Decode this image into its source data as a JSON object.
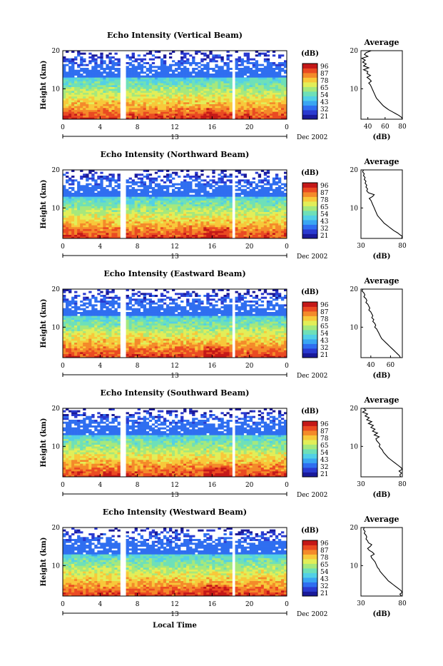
{
  "page": {
    "x_axis_label": "Local Time"
  },
  "colors": {
    "colorbar": [
      "#1a1a9a",
      "#2a3ad0",
      "#2f6ef0",
      "#3aa6f2",
      "#52d0e6",
      "#6ee0b8",
      "#a6e87c",
      "#e2ee58",
      "#f8c83a",
      "#f48a2a",
      "#ea4a22",
      "#c41818"
    ],
    "panel_bg": "#ffffff",
    "gap": "#ffffff",
    "profile_line": "#000000"
  },
  "chart_data": [
    {
      "type": "heatmap",
      "title": "Echo Intensity (Vertical Beam)",
      "ylabel": "Height (km)",
      "x_ticks": [
        "0",
        "4",
        "8",
        "12",
        "16",
        "20",
        "0"
      ],
      "xlim": [
        0,
        24
      ],
      "ylim": [
        2,
        20
      ],
      "y_ticks": [
        "10",
        "20"
      ],
      "day_label": "13",
      "date_label": "Dec 2002",
      "data_gaps_hours": [
        [
          6.3,
          6.8
        ],
        [
          18.1,
          18.4
        ]
      ],
      "colorbar": {
        "unit": "(dB)",
        "levels": [
          "96",
          "87",
          "78",
          "65",
          "54",
          "43",
          "32",
          "21"
        ]
      },
      "average_profile": {
        "title": "Average",
        "xlabel": "(dB)",
        "x_ticks": [
          "40",
          "60",
          "80"
        ],
        "y_ticks": [
          "10",
          "20"
        ],
        "xlim": [
          32,
          80
        ],
        "ylim": [
          2,
          20
        ],
        "height_km": [
          20,
          19.5,
          19,
          18.5,
          18,
          17.5,
          17,
          16.5,
          16,
          15.5,
          15,
          14.5,
          14,
          13.5,
          13,
          12.5,
          12,
          11.5,
          11,
          10.5,
          10,
          9.5,
          9,
          8.5,
          8,
          7.5,
          7,
          6.5,
          6,
          5.5,
          5,
          4.5,
          4,
          3.5,
          3,
          2.5,
          2
        ],
        "power_db": [
          44,
          38,
          36,
          40,
          33,
          37,
          34,
          38,
          35,
          41,
          35,
          40,
          39,
          43,
          39,
          42,
          44,
          41,
          43,
          44,
          45,
          46,
          47,
          48,
          49,
          50,
          52,
          54,
          56,
          58,
          61,
          64,
          68,
          72,
          76,
          79,
          80
        ]
      }
    },
    {
      "type": "heatmap",
      "title": "Echo Intensity (Northward Beam)",
      "ylabel": "Height (km)",
      "x_ticks": [
        "0",
        "4",
        "8",
        "12",
        "16",
        "20",
        "0"
      ],
      "xlim": [
        0,
        24
      ],
      "ylim": [
        2,
        20
      ],
      "y_ticks": [
        "10",
        "20"
      ],
      "day_label": "13",
      "date_label": "Dec 2002",
      "data_gaps_hours": [
        [
          6.3,
          6.8
        ],
        [
          18.1,
          18.4
        ]
      ],
      "colorbar": {
        "unit": "(dB)",
        "levels": [
          "96",
          "87",
          "78",
          "65",
          "54",
          "43",
          "32",
          "21"
        ]
      },
      "average_profile": {
        "title": "Average",
        "xlabel": "(dB)",
        "x_ticks": [
          "30",
          "80"
        ],
        "y_ticks": [
          "10",
          "20"
        ],
        "xlim": [
          30,
          80
        ],
        "ylim": [
          2,
          20
        ],
        "height_km": [
          20,
          19.5,
          19,
          18.5,
          18,
          17.5,
          17,
          16.5,
          16,
          15.5,
          15,
          14.5,
          14,
          13.5,
          13,
          12.5,
          12,
          11.5,
          11,
          10.5,
          10,
          9.5,
          9,
          8.5,
          8,
          7.5,
          7,
          6.5,
          6,
          5.5,
          5,
          4.5,
          4,
          3.5,
          3,
          2.5,
          2
        ],
        "power_db": [
          33,
          32,
          34,
          33,
          35,
          34,
          36,
          35,
          37,
          36,
          38,
          37,
          39,
          46,
          44,
          40,
          42,
          43,
          44,
          45,
          46,
          47,
          48,
          49,
          50,
          52,
          54,
          56,
          58,
          61,
          64,
          67,
          70,
          74,
          77,
          80,
          79
        ]
      }
    },
    {
      "type": "heatmap",
      "title": "Echo Intensity (Eastward Beam)",
      "ylabel": "Height (km)",
      "x_ticks": [
        "0",
        "4",
        "8",
        "12",
        "16",
        "20",
        "0"
      ],
      "xlim": [
        0,
        24
      ],
      "ylim": [
        2,
        20
      ],
      "y_ticks": [
        "10",
        "20"
      ],
      "day_label": "13",
      "date_label": "Dec 2002",
      "data_gaps_hours": [
        [
          6.3,
          6.8
        ],
        [
          18.1,
          18.4
        ]
      ],
      "colorbar": {
        "unit": "(dB)",
        "levels": [
          "96",
          "87",
          "78",
          "65",
          "54",
          "43",
          "32",
          "21"
        ]
      },
      "average_profile": {
        "title": "Average",
        "xlabel": "(dB)",
        "x_ticks": [
          "40",
          "60"
        ],
        "y_ticks": [
          "10",
          "20"
        ],
        "xlim": [
          30,
          72
        ],
        "ylim": [
          2,
          20
        ],
        "height_km": [
          20,
          19.5,
          19,
          18.5,
          18,
          17.5,
          17,
          16.5,
          16,
          15.5,
          15,
          14.5,
          14,
          13.5,
          13,
          12.5,
          12,
          11.5,
          11,
          10.5,
          10,
          9.5,
          9,
          8.5,
          8,
          7.5,
          7,
          6.5,
          6,
          5.5,
          5,
          4.5,
          4,
          3.5,
          3,
          2.5,
          2
        ],
        "power_db": [
          32,
          31,
          33,
          34,
          33,
          35,
          36,
          35,
          37,
          38,
          39,
          38,
          40,
          41,
          42,
          41,
          43,
          42,
          44,
          45,
          44,
          46,
          47,
          48,
          49,
          50,
          51,
          53,
          55,
          57,
          59,
          61,
          63,
          65,
          67,
          69,
          70
        ]
      }
    },
    {
      "type": "heatmap",
      "title": "Echo Intensity (Southward Beam)",
      "ylabel": "Height (km)",
      "x_ticks": [
        "0",
        "4",
        "8",
        "12",
        "16",
        "20",
        "0"
      ],
      "xlim": [
        0,
        24
      ],
      "ylim": [
        2,
        20
      ],
      "y_ticks": [
        "10",
        "20"
      ],
      "day_label": "13",
      "date_label": "Dec 2002",
      "data_gaps_hours": [
        [
          6.3,
          6.8
        ],
        [
          18.1,
          18.4
        ]
      ],
      "colorbar": {
        "unit": "(dB)",
        "levels": [
          "96",
          "87",
          "78",
          "65",
          "54",
          "43",
          "32",
          "21"
        ]
      },
      "average_profile": {
        "title": "Average",
        "xlabel": "(dB)",
        "x_ticks": [
          "30",
          "80"
        ],
        "y_ticks": [
          "10",
          "20"
        ],
        "xlim": [
          30,
          80
        ],
        "ylim": [
          2,
          20
        ],
        "height_km": [
          20,
          19.5,
          19,
          18.5,
          18,
          17.5,
          17,
          16.5,
          16,
          15.5,
          15,
          14.5,
          14,
          13.5,
          13,
          12.5,
          12,
          11.5,
          11,
          10.5,
          10,
          9.5,
          9,
          8.5,
          8,
          7.5,
          7,
          6.5,
          6,
          5.5,
          5,
          4.5,
          4,
          3.5,
          3,
          2.5,
          2
        ],
        "power_db": [
          33,
          36,
          32,
          38,
          35,
          40,
          37,
          43,
          39,
          45,
          42,
          47,
          44,
          50,
          46,
          52,
          48,
          49,
          51,
          53,
          52,
          54,
          56,
          57,
          59,
          61,
          63,
          66,
          69,
          72,
          75,
          78,
          80,
          76,
          79,
          77,
          78
        ]
      }
    },
    {
      "type": "heatmap",
      "title": "Echo Intensity (Westward Beam)",
      "ylabel": "Height (km)",
      "x_ticks": [
        "0",
        "4",
        "8",
        "12",
        "16",
        "20",
        "0"
      ],
      "xlim": [
        0,
        24
      ],
      "ylim": [
        2,
        20
      ],
      "y_ticks": [
        "10",
        "20"
      ],
      "day_label": "13",
      "date_label": "Dec 2002",
      "data_gaps_hours": [
        [
          6.3,
          6.8
        ],
        [
          18.1,
          18.4
        ]
      ],
      "colorbar": {
        "unit": "(dB)",
        "levels": [
          "96",
          "87",
          "78",
          "65",
          "54",
          "43",
          "32",
          "21"
        ]
      },
      "average_profile": {
        "title": "Average",
        "xlabel": "(dB)",
        "x_ticks": [
          "30",
          "80"
        ],
        "y_ticks": [
          "10",
          "20"
        ],
        "xlim": [
          30,
          80
        ],
        "ylim": [
          2,
          20
        ],
        "height_km": [
          20,
          19.5,
          19,
          18.5,
          18,
          17.5,
          17,
          16.5,
          16,
          15.5,
          15,
          14.5,
          14,
          13.5,
          13,
          12.5,
          12,
          11.5,
          11,
          10.5,
          10,
          9.5,
          9,
          8.5,
          8,
          7.5,
          7,
          6.5,
          6,
          5.5,
          5,
          4.5,
          4,
          3.5,
          3,
          2.5,
          2
        ],
        "power_db": [
          34,
          33,
          35,
          34,
          36,
          37,
          36,
          38,
          39,
          43,
          41,
          38,
          40,
          44,
          46,
          42,
          43,
          45,
          47,
          48,
          49,
          50,
          52,
          53,
          55,
          57,
          59,
          61,
          63,
          66,
          69,
          72,
          75,
          78,
          80,
          77,
          79
        ]
      }
    }
  ]
}
